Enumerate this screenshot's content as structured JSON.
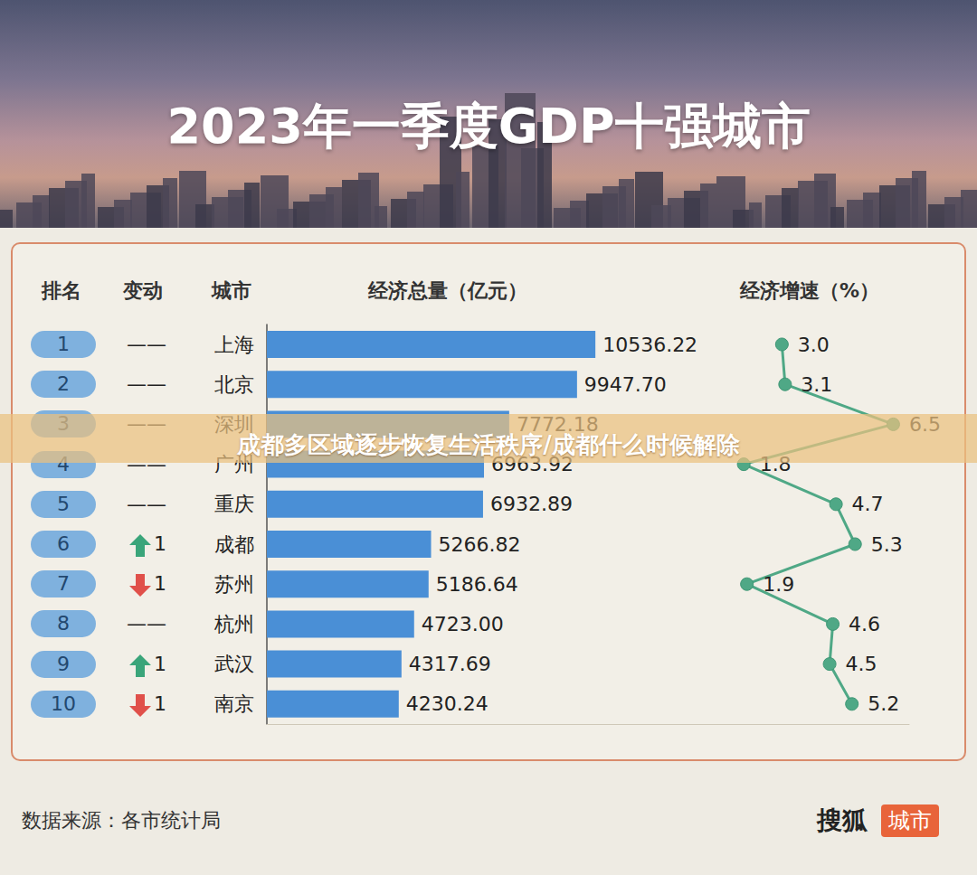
{
  "header": {
    "title": "2023年一季度GDP十强城市"
  },
  "table": {
    "headers": [
      "排名",
      "变动",
      "城市",
      "经济总量（亿元）",
      "经济增速（%）"
    ],
    "ranks": [
      1,
      2,
      3,
      4,
      5,
      6,
      7,
      8,
      9,
      10
    ],
    "changes": [
      "——",
      "——",
      "——",
      "——",
      "——",
      {
        "direction": "up",
        "label": "1"
      },
      {
        "direction": "down",
        "label": "1"
      },
      "——",
      {
        "direction": "up",
        "label": "1"
      },
      {
        "direction": "down",
        "label": "1"
      }
    ]
  },
  "chart_data": [
    {
      "type": "bar",
      "orientation": "horizontal",
      "categories": [
        "上海",
        "北京",
        "深圳",
        "广州",
        "重庆",
        "成都",
        "苏州",
        "杭州",
        "武汉",
        "南京"
      ],
      "values": [
        10536.22,
        9947.7,
        7772.18,
        6963.92,
        6932.89,
        5266.82,
        5186.64,
        4723.0,
        4317.69,
        4230.24
      ],
      "value_labels": [
        "10536.22",
        "9947.70",
        "7772.18",
        "6963.92",
        "6932.89",
        "5266.82",
        "5186.64",
        "4723.00",
        "4317.69",
        "4230.24"
      ],
      "color": "#4a8fd6",
      "xlim": [
        0,
        15000
      ],
      "tick_labels": "y",
      "data_labels": true,
      "grid": false
    },
    {
      "type": "line",
      "orientation": "horizontal",
      "categories": [
        "上海",
        "北京",
        "深圳",
        "广州",
        "重庆",
        "成都",
        "苏州",
        "杭州",
        "武汉",
        "南京"
      ],
      "values": [
        3.0,
        3.1,
        6.5,
        1.8,
        4.7,
        5.3,
        1.9,
        4.6,
        4.5,
        5.2
      ],
      "value_labels": [
        "3.0",
        "3.1",
        "6.5",
        "1.8",
        "4.7",
        "5.3",
        "1.9",
        "4.6",
        "4.5",
        "5.2"
      ],
      "color": "#4fa886",
      "marker": "circle",
      "xlim": [
        1,
        7
      ],
      "tick_labels": false,
      "data_labels": true,
      "grid": false
    }
  ],
  "footer": {
    "source": "数据来源：各市统计局",
    "brand": "搜狐",
    "brand_tag": "城市"
  },
  "overlay": {
    "text": "成都多区域逐步恢复生活秩序/成都什么时候解除"
  }
}
